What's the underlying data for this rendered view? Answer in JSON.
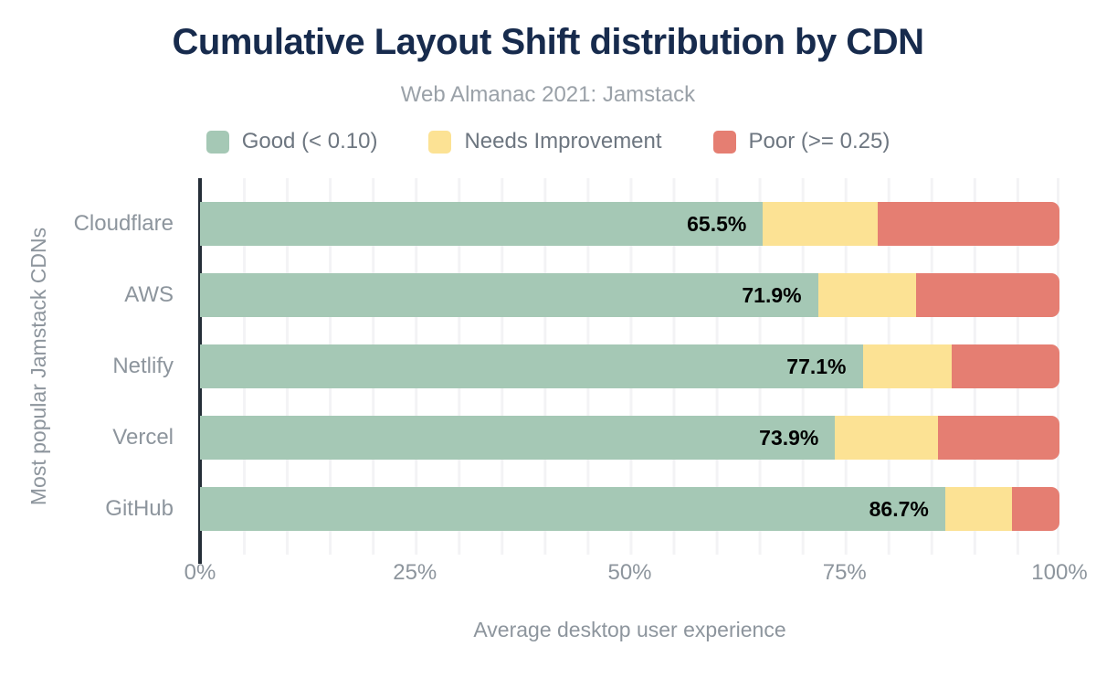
{
  "colors": {
    "background": "#ffffff",
    "title_text": "#172b4d",
    "subtitle_text": "#9aa1a8",
    "axis_text": "#8d959d",
    "legend_text": "#6d7680",
    "bar_value_text": "#000000",
    "axis_line": "#252e38",
    "gridline": "#f3f3f5",
    "good": "#a5c8b5",
    "needs_improvement": "#fce294",
    "poor": "#e57e72"
  },
  "header": {
    "title": "Cumulative Layout Shift distribution by CDN",
    "subtitle": "Web Almanac 2021: Jamstack"
  },
  "axes": {
    "y_title": "Most popular Jamstack CDNs",
    "x_title": "Average desktop user experience"
  },
  "chart_data": {
    "type": "bar",
    "orientation": "horizontal",
    "stacked": true,
    "title": "Cumulative Layout Shift distribution by CDN",
    "subtitle": "Web Almanac 2021: Jamstack",
    "xlabel": "Average desktop user experience",
    "ylabel": "Most popular Jamstack CDNs",
    "xlim": [
      0,
      100
    ],
    "x_tick_labels": [
      "0%",
      "25%",
      "50%",
      "75%",
      "100%"
    ],
    "grid": "vertical minor gridlines every 5%",
    "legend_position": "top",
    "categories": [
      "Cloudflare",
      "AWS",
      "Netlify",
      "Vercel",
      "GitHub"
    ],
    "series": [
      {
        "key": "good",
        "name": "Good (< 0.10)",
        "color": "#a5c8b5",
        "values": [
          65.5,
          71.9,
          77.1,
          73.9,
          86.7
        ],
        "value_labels": [
          "65.5%",
          "71.9%",
          "77.1%",
          "73.9%",
          "86.7%"
        ]
      },
      {
        "key": "needs_improvement",
        "name": "Needs Improvement",
        "color": "#fce294",
        "values": [
          13.4,
          11.4,
          10.4,
          12.0,
          7.8
        ]
      },
      {
        "key": "poor",
        "name": "Poor (>= 0.25)",
        "color": "#e57e72",
        "values": [
          21.1,
          16.7,
          12.5,
          14.1,
          5.5
        ]
      }
    ]
  }
}
